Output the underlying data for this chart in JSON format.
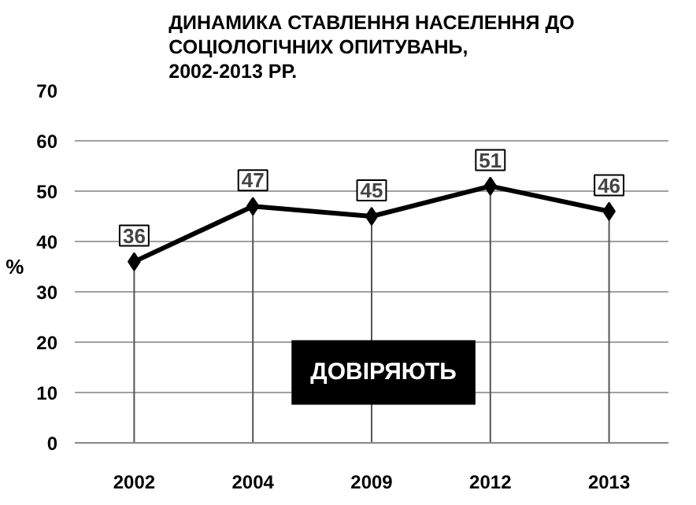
{
  "chart_data": {
    "type": "line",
    "title": "ДИНАМИКА СТАВЛЕННЯ НАСЕЛЕННЯ ДО СОЦІОЛОГІЧНИХ ОПИТУВАНЬ, 2002-2013 РР.",
    "ylabel": "%",
    "categories": [
      "2002",
      "2004",
      "2009",
      "2012",
      "2013"
    ],
    "series": [
      {
        "name": "ДОВІРЯЮТЬ",
        "color": "#000000",
        "values": [
          36,
          47,
          45,
          51,
          46
        ]
      }
    ],
    "ylim": [
      0,
      70
    ],
    "yticks": [
      0,
      10,
      20,
      30,
      40,
      50,
      60,
      70
    ],
    "grid": "y",
    "legend": false,
    "marker": "diamond",
    "line_style": "solid",
    "data_labels": true
  }
}
